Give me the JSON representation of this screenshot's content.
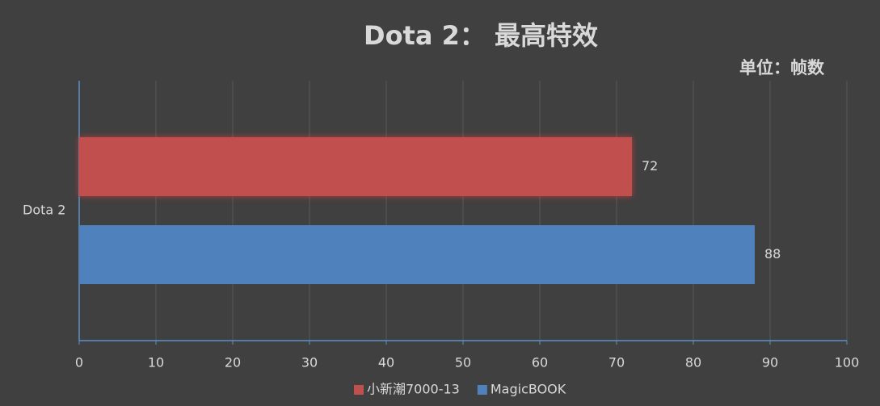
{
  "chart_data": {
    "type": "bar",
    "orientation": "horizontal",
    "title": "Dota 2： 最高特效",
    "subtitle": "单位：帧数",
    "categories": [
      "Dota 2"
    ],
    "series": [
      {
        "name": "小新潮7000-13",
        "color": "#c0504d",
        "values": [
          72
        ]
      },
      {
        "name": "MagicBOOK",
        "color": "#4f81bd",
        "values": [
          88
        ]
      }
    ],
    "xlim": [
      0,
      100
    ],
    "xticks": [
      0,
      10,
      20,
      30,
      40,
      50,
      60,
      70,
      80,
      90,
      100
    ],
    "grid": true,
    "legend": "bottom"
  }
}
